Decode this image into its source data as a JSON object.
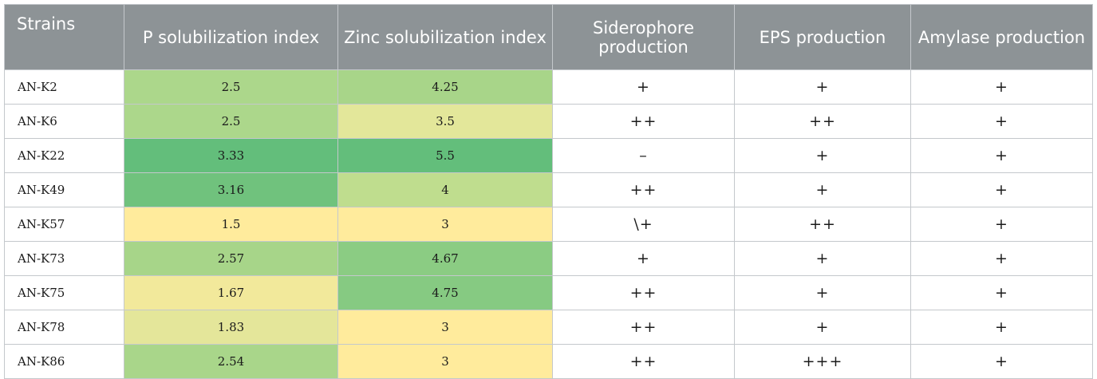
{
  "table": {
    "headers": [
      "Strains",
      "P solubilization index",
      "Zinc solubilization index",
      "Siderophore production",
      "EPS production",
      "Amylase production"
    ],
    "rows": [
      {
        "strain": "AN-K2",
        "p_index": "2.5",
        "p_color": "#acd78b",
        "zinc_index": "4.25",
        "zinc_color": "#a8d589",
        "siderophore": "+",
        "eps": "+",
        "amylase": "+"
      },
      {
        "strain": "AN-K6",
        "p_index": "2.5",
        "p_color": "#acd78b",
        "zinc_index": "3.5",
        "zinc_color": "#e3e79a",
        "siderophore": "++",
        "eps": "++",
        "amylase": "+"
      },
      {
        "strain": "AN-K22",
        "p_index": "3.33",
        "p_color": "#63be7b",
        "zinc_index": "5.5",
        "zinc_color": "#63be7b",
        "siderophore": "–",
        "eps": "+",
        "amylase": "+"
      },
      {
        "strain": "AN-K49",
        "p_index": "3.16",
        "p_color": "#70c27d",
        "zinc_index": "4",
        "zinc_color": "#bfdd8e",
        "siderophore": "++",
        "eps": "+",
        "amylase": "+"
      },
      {
        "strain": "AN-K57",
        "p_index": "1.5",
        "p_color": "#ffeb9c",
        "zinc_index": "3",
        "zinc_color": "#ffeb9c",
        "siderophore": "\\+",
        "eps": "++",
        "amylase": "+"
      },
      {
        "strain": "AN-K73",
        "p_index": "2.57",
        "p_color": "#a7d589",
        "zinc_index": "4.67",
        "zinc_color": "#8bcc83",
        "siderophore": "+",
        "eps": "+",
        "amylase": "+"
      },
      {
        "strain": "AN-K75",
        "p_index": "1.67",
        "p_color": "#f2e99b",
        "zinc_index": "4.75",
        "zinc_color": "#86ca82",
        "siderophore": "++",
        "eps": "+",
        "amylase": "+"
      },
      {
        "strain": "AN-K78",
        "p_index": "1.83",
        "p_color": "#e4e69a",
        "zinc_index": "3",
        "zinc_color": "#ffeb9c",
        "siderophore": "++",
        "eps": "+",
        "amylase": "+"
      },
      {
        "strain": "AN-K86",
        "p_index": "2.54",
        "p_color": "#a9d68a",
        "zinc_index": "3",
        "zinc_color": "#ffeb9c",
        "siderophore": "++",
        "eps": "+++",
        "amylase": "+"
      }
    ]
  }
}
